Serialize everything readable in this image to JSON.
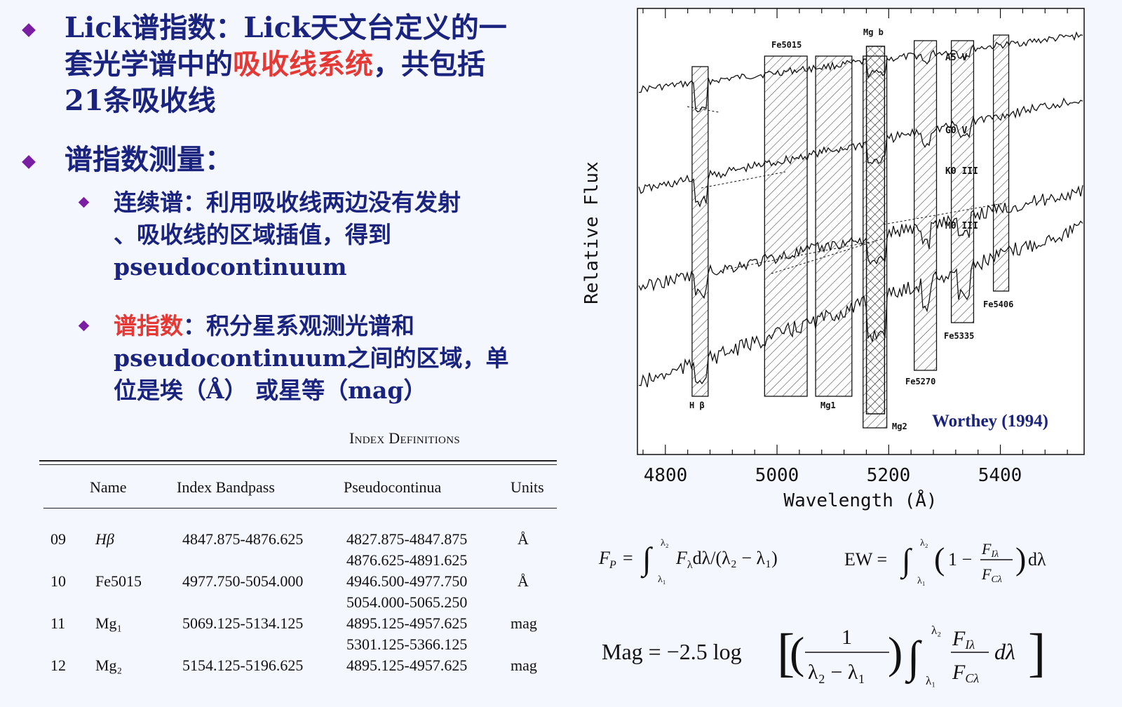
{
  "bullets": {
    "b1": {
      "part1": "Lick谱指数：Lick天文台定义的一",
      "part2a": "套光学谱中的",
      "part2red": "吸收线系统",
      "part2b": "，共包括",
      "part3": "21条吸收线"
    },
    "b2": "谱指数测量：",
    "b2a": {
      "line1": "连续谱：利用吸收线两边没有发射",
      "line2": "、吸收线的区域插值，得到",
      "line3": "pseudocontinuum"
    },
    "b2b": {
      "red": "谱指数",
      "line1": "：积分星系观测光谱和",
      "line2": "pseudocontinuum之间的区域，单",
      "line3": "位是埃（Å） 或星等（mag）"
    }
  },
  "table": {
    "title": "Index Definitions",
    "headers": [
      "Name",
      "Index Bandpass",
      "Pseudocontinua",
      "Units"
    ],
    "rows": [
      {
        "num": "09",
        "name": "Hβ",
        "band": "4847.875-4876.625",
        "pc1": "4827.875-4847.875",
        "pc2": "4876.625-4891.625",
        "units": "Å"
      },
      {
        "num": "10",
        "name": "Fe5015",
        "band": "4977.750-5054.000",
        "pc1": "4946.500-4977.750",
        "pc2": "5054.000-5065.250",
        "units": "Å"
      },
      {
        "num": "11",
        "name": "Mg₁",
        "band": "5069.125-5134.125",
        "pc1": "4895.125-4957.625",
        "pc2": "5301.125-5366.125",
        "units": "mag"
      },
      {
        "num": "12",
        "name": "Mg₂",
        "band": "5154.125-5196.625",
        "pc1": "4895.125-4957.625",
        "pc2": "",
        "units": "mag"
      }
    ]
  },
  "chart_data": {
    "type": "line",
    "xlabel": "Wavelength (Å)",
    "ylabel": "Relative Flux",
    "xlim": [
      4750,
      5550
    ],
    "xticks": [
      "4800",
      "5000",
      "5200",
      "5400"
    ],
    "credit": "Worthey (1994)",
    "series": [
      {
        "name": "A5 V"
      },
      {
        "name": "G0 V"
      },
      {
        "name": "K0 III"
      },
      {
        "name": "M0 III"
      }
    ],
    "bands": [
      {
        "label": "H β",
        "range": [
          4847.875,
          4876.625
        ]
      },
      {
        "label": "Fe5015",
        "range": [
          4977.75,
          5054.0
        ]
      },
      {
        "label": "Mg1",
        "range": [
          5069.125,
          5134.125
        ]
      },
      {
        "label": "Mg b",
        "range": [
          5160.125,
          5192.625
        ]
      },
      {
        "label": "Mg2",
        "range": [
          5154.125,
          5196.625
        ]
      },
      {
        "label": "Fe5270",
        "range": [
          5245.65,
          5285.65
        ]
      },
      {
        "label": "Fe5335",
        "range": [
          5312.125,
          5352.125
        ]
      },
      {
        "label": "Fe5406",
        "range": [
          5387.5,
          5415.0
        ]
      }
    ]
  },
  "equations": {
    "fp": "F_P = ∫ F_λ dλ / (λ₂ − λ₁)",
    "ew": "EW = ∫ (1 − F_Iλ / F_Cλ) dλ",
    "mag": "Mag = −2.5 log [ ( 1 / (λ₂ − λ₁) ) ∫ F_Iλ / F_Cλ dλ ]"
  }
}
